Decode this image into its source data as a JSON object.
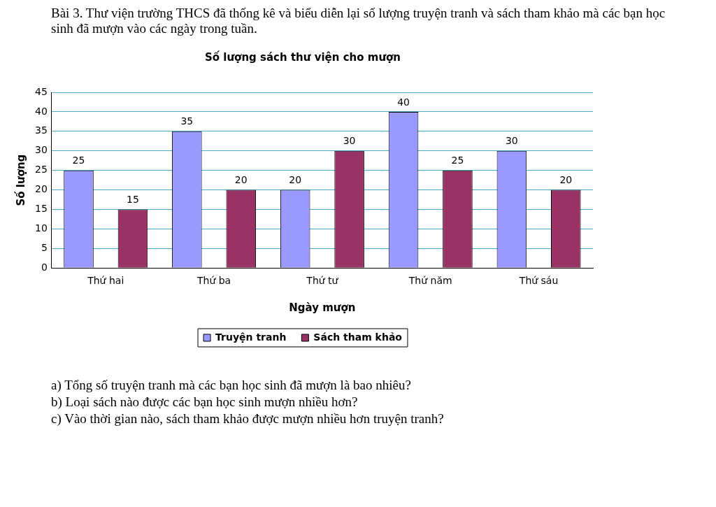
{
  "chart_data": {
    "type": "bar",
    "title": "Số lượng sách thư viện cho mượn",
    "xlabel": "Ngày mượn",
    "ylabel": "Số lượng",
    "categories": [
      "Thứ hai",
      "Thứ ba",
      "Thứ tư",
      "Thứ năm",
      "Thứ sáu"
    ],
    "series": [
      {
        "name": "Truyện tranh",
        "color": "#9999ff",
        "values": [
          25,
          35,
          20,
          40,
          30
        ]
      },
      {
        "name": "Sách tham khảo",
        "color": "#993366",
        "values": [
          15,
          20,
          30,
          25,
          20
        ]
      }
    ],
    "ylim": [
      0,
      45
    ],
    "yticks": [
      0,
      5,
      10,
      15,
      20,
      25,
      30,
      35,
      40,
      45
    ],
    "grid": "y",
    "legend": "bottom",
    "data_labels": true,
    "annotations": [
      "Bài 3. Thư viện trường THCS đã thống kê và biểu diễn lại số lượng truyện tranh và sách tham khảo mà các bạn học sinh đã mượn vào các ngày trong tuần.",
      "a) Tổng số truyện tranh mà các bạn học sinh đã mượn là bao nhiêu?",
      "b) Loại sách nào được các bạn học sinh mượn nhiều hơn?",
      "c) Vào thời gian nào, sách tham khảo được mượn nhiều hơn truyện tranh?"
    ]
  }
}
